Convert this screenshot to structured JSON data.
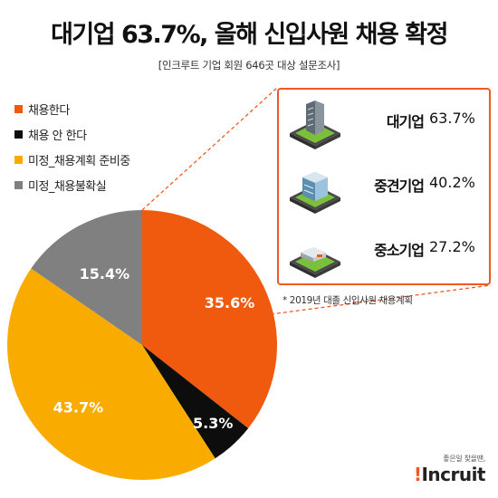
{
  "title": "대기업 63.7%, 올해 신입사원 채용 확정",
  "subtitle": "[인크루트 기업 회원 646곳 대상 설문조사]",
  "chart_data": {
    "type": "pie",
    "start_angle_deg": 0,
    "direction": "clockwise",
    "slices": [
      {
        "name": "채용한다",
        "value": 35.6,
        "label": "35.6%",
        "color": "#f05a0e",
        "label_color": "#ffffff"
      },
      {
        "name": "채용 안 한다",
        "value": 5.3,
        "label": "5.3%",
        "color": "#0d0d0d",
        "label_color": "#ffffff"
      },
      {
        "name": "미정_채용계획 준비중",
        "value": 43.7,
        "label": "43.7%",
        "color": "#f9ab00",
        "label_color": "#ffffff"
      },
      {
        "name": "미정_채용불확실",
        "value": 15.4,
        "label": "15.4%",
        "color": "#808080",
        "label_color": "#ffffff"
      }
    ]
  },
  "panel": {
    "companies": [
      {
        "name": "대기업",
        "value": "63.7%",
        "icon": "skyscraper-icon"
      },
      {
        "name": "중견기업",
        "value": "40.2%",
        "icon": "office-building-icon"
      },
      {
        "name": "중소기업",
        "value": "27.2%",
        "icon": "small-factory-icon"
      }
    ],
    "border_color": "#f05a22"
  },
  "footnote": "* 2019년 대졸 신입사원 채용계획",
  "brand": {
    "tagline": "좋은일 찾을땐,",
    "logo": "Incruit",
    "logo_dot": "!"
  }
}
